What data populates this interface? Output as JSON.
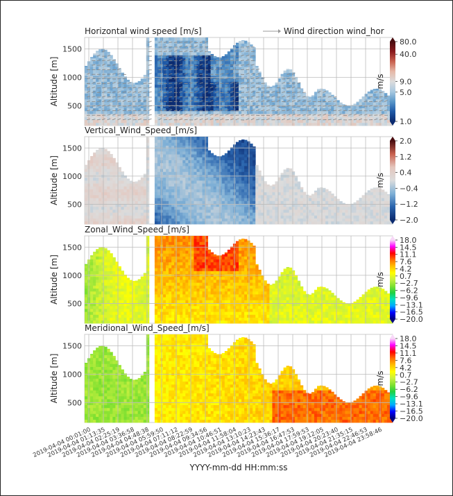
{
  "figure": {
    "xlabel": "YYYY-mm-dd HH:mm:ss",
    "x_tick_labels": [
      "2019-04-04 00:01:00",
      "2019-04-04 01:13:35",
      "2019-04-04 02:25:19",
      "2019-04-04 03:36:58",
      "2019-04-04 04:48:38",
      "2019-04-04 05:59:50",
      "2019-04-04 07:11:12",
      "2019-04-04 08:22:59",
      "2019-04-04 09:34:56",
      "2019-04-04 10:46:51",
      "2019-04-04 11:58:04",
      "2019-04-04 13:10:23",
      "2019-04-04 14:23:43",
      "2019-04-04 15:36:17",
      "2019-04-04 16:47:53",
      "2019-04-04 17:59:53",
      "2019-04-04 19:12:05",
      "2019-04-04 20:23:40",
      "2019-04-04 21:35:15",
      "2019-04-04 22:46:53",
      "2019-04-04 23:58:46"
    ]
  },
  "chart_data": [
    {
      "type": "heatmap",
      "title": "Horizontal wind speed [m/s]",
      "legend": "Wind direction wind_hor",
      "ylabel": "Altitude [m]",
      "yticks": [
        500,
        1000,
        1500
      ],
      "ylim": [
        150,
        1700
      ],
      "colorbar_label": "m/s",
      "colorbar_scale": "log",
      "colorbar_ticks": [
        "80.0",
        "40.0",
        "9.0",
        "5.0",
        "1.0"
      ],
      "colorbar_range": [
        1.0,
        80.0
      ],
      "colormap": [
        "#0b2a6f",
        "#1f5aa8",
        "#5a97c9",
        "#a9c9e0",
        "#dcdcdc",
        "#e6b9a8",
        "#c9614f",
        "#8a1a1e",
        "#4a0d10"
      ]
    },
    {
      "type": "heatmap",
      "title": "Vertical_Wind_Speed_[m/s]",
      "ylabel": "Altitude [m]",
      "yticks": [
        500,
        1000,
        1500
      ],
      "ylim": [
        150,
        1700
      ],
      "colorbar_label": "m/s",
      "colorbar_ticks": [
        "2.0",
        "1.2",
        "0.4",
        "−0.4",
        "−1.2",
        "−2.0"
      ],
      "colorbar_range": [
        -2.0,
        2.0
      ],
      "colormap": [
        "#0b2a6f",
        "#2a64ad",
        "#7fb0d6",
        "#dcdcdc",
        "#e4c6bd",
        "#c9614f",
        "#4a0d10"
      ]
    },
    {
      "type": "heatmap",
      "title": "Zonal_Wind_Speed_[m/s]",
      "ylabel": "Altitude [m]",
      "yticks": [
        500,
        1000,
        1500
      ],
      "ylim": [
        150,
        1700
      ],
      "colorbar_label": "m/s",
      "colorbar_ticks": [
        "18.0",
        "14.5",
        "11.1",
        "7.6",
        "4.2",
        "0.7",
        "−2.7",
        "−6.2",
        "−9.6",
        "−13.1",
        "−16.5",
        "−20.0"
      ],
      "colorbar_range": [
        -20.0,
        18.0
      ],
      "colormap": [
        "#000080",
        "#0000ff",
        "#00aaff",
        "#00e0c0",
        "#20d040",
        "#7fe030",
        "#c8f040",
        "#ffff00",
        "#ffc000",
        "#ff7000",
        "#ff0000",
        "#ff00ff",
        "#f8d8f8"
      ]
    },
    {
      "type": "heatmap",
      "title": "Meridional_Wind_Speed_[m/s]",
      "ylabel": "Altitude [m]",
      "yticks": [
        500,
        1000,
        1500
      ],
      "ylim": [
        150,
        1700
      ],
      "colorbar_label": "m/s",
      "colorbar_ticks": [
        "18.0",
        "14.5",
        "11.1",
        "7.6",
        "4.2",
        "0.7",
        "−2.7",
        "−6.2",
        "−9.6",
        "−13.1",
        "−16.5",
        "−20.0"
      ],
      "colorbar_range": [
        -20.0,
        18.0
      ],
      "colormap": [
        "#000080",
        "#0000ff",
        "#00aaff",
        "#00e0c0",
        "#20d040",
        "#7fe030",
        "#c8f040",
        "#ffff00",
        "#ffc000",
        "#ff7000",
        "#ff0000",
        "#ff00ff",
        "#f8d8f8"
      ]
    }
  ]
}
